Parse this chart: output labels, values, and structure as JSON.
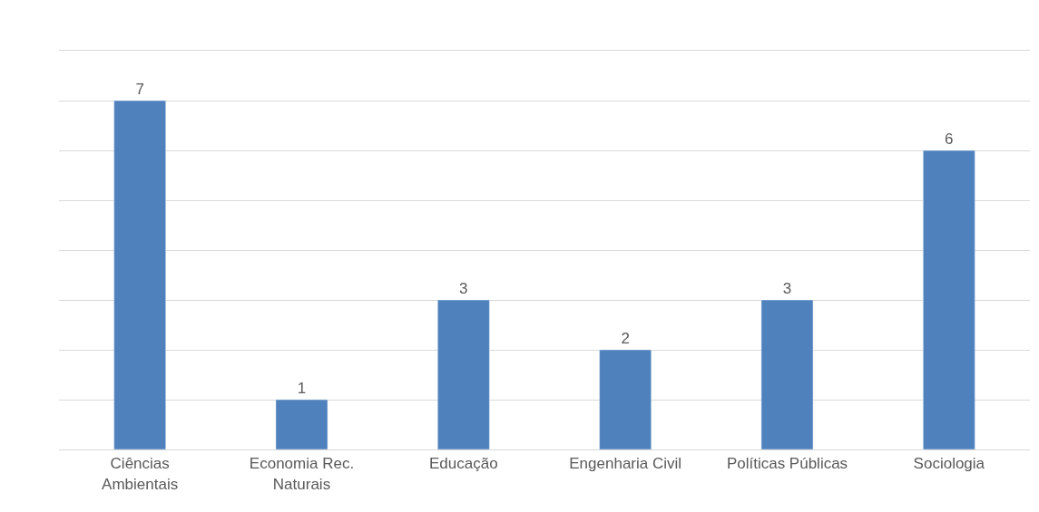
{
  "chart_data": {
    "type": "bar",
    "categories": [
      "Ciências\nAmbientais",
      "Economia Rec.\nNaturais",
      "Educação",
      "Engenharia Civil",
      "Políticas Públicas",
      "Sociologia"
    ],
    "values": [
      7,
      1,
      3,
      2,
      3,
      6
    ],
    "color": "#4f81bd",
    "data_labels": true,
    "ylim": [
      0,
      8
    ],
    "yticks": [
      {
        "value": 0,
        "label": null
      },
      {
        "value": 1,
        "label": null
      },
      {
        "value": 2,
        "label": null
      },
      {
        "value": 3,
        "label": null
      },
      {
        "value": 4,
        "label": null
      },
      {
        "value": 5,
        "label": null
      },
      {
        "value": 6,
        "label": null
      },
      {
        "value": 7,
        "label": null
      },
      {
        "value": 8,
        "label": null
      }
    ],
    "tick_labels": "x",
    "grid": "y",
    "legend": false
  }
}
